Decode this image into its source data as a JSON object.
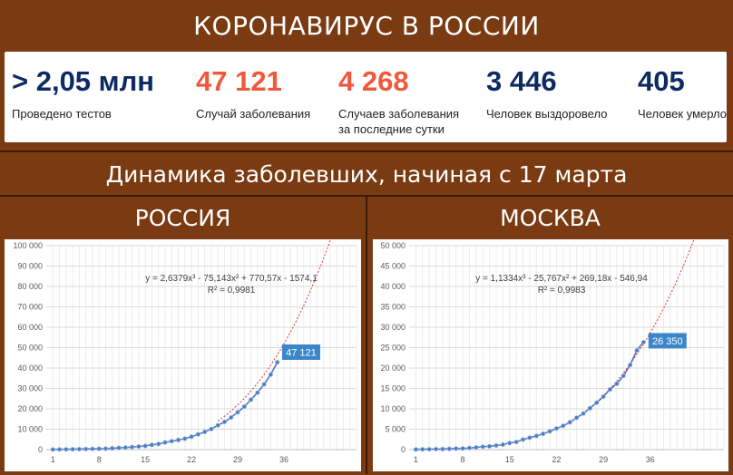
{
  "header": {
    "title": "КОРОНАВИРУС В РОССИИ"
  },
  "stats": [
    {
      "value": "> 2,05 млн",
      "label_lines": [
        "Проведено тестов"
      ],
      "color": "#0e2a63"
    },
    {
      "value": "47 121",
      "label_lines": [
        "Случай заболевания"
      ],
      "color": "#f0573b"
    },
    {
      "value": "4 268",
      "label_lines": [
        "Случаев заболевания",
        "за последние сутки"
      ],
      "color": "#f0573b"
    },
    {
      "value": "3 446",
      "label_lines": [
        "Человек выздоровело"
      ],
      "color": "#0e2a63"
    },
    {
      "value": "405",
      "label_lines": [
        "Человек умерло"
      ],
      "color": "#0e2a63"
    }
  ],
  "section": {
    "title": "Динамика заболевших, начиная с 17 марта"
  },
  "regions": {
    "left": "РОССИЯ",
    "right": "МОСКВА"
  },
  "colors": {
    "background": "#7a3b12",
    "series": "#4a78c2",
    "trend": "#e03030",
    "callout": "#3b86c8"
  },
  "chart_data": [
    {
      "type": "line",
      "title": "",
      "xlabel": "",
      "ylabel": "",
      "xlim": [
        0,
        47
      ],
      "ylim": [
        0,
        100000
      ],
      "x_ticks": [
        1,
        8,
        15,
        22,
        29,
        36
      ],
      "y_ticks": [
        0,
        10000,
        20000,
        30000,
        40000,
        50000,
        60000,
        70000,
        80000,
        90000,
        100000
      ],
      "y_tick_labels": [
        "0",
        "10 000",
        "20 000",
        "30 000",
        "40 000",
        "50 000",
        "60 000",
        "70 000",
        "80 000",
        "90 000",
        "100 000"
      ],
      "grid": true,
      "series": [
        {
          "x": [
            1,
            2,
            3,
            4,
            5,
            6,
            7,
            8,
            9,
            10,
            11,
            12,
            13,
            14,
            15,
            16,
            17,
            18,
            19,
            20,
            21,
            22,
            23,
            24,
            25,
            26,
            27,
            28,
            29,
            30,
            31,
            32,
            33,
            34,
            35
          ],
          "values": [
            93,
            114,
            147,
            199,
            253,
            306,
            367,
            438,
            495,
            658,
            840,
            1036,
            1264,
            1534,
            1836,
            2337,
            2777,
            3548,
            4149,
            4731,
            5389,
            6343,
            7497,
            8672,
            10131,
            11917,
            13584,
            15770,
            18328,
            21102,
            24490,
            27938,
            32008,
            36793,
            42853
          ]
        }
      ],
      "trendline": {
        "equation": "y = 2,6379x³ - 75,143x² + 770,57x - 1574,1",
        "r2": "R² = 0,9981",
        "coefficients": [
          2.6379,
          -75.143,
          770.57,
          -1574.1
        ],
        "x_range": [
          26,
          47
        ]
      },
      "callout": {
        "x": 36,
        "value": 47121,
        "text": "47 121"
      }
    },
    {
      "type": "line",
      "title": "",
      "xlabel": "",
      "ylabel": "",
      "xlim": [
        0,
        47
      ],
      "ylim": [
        0,
        50000
      ],
      "x_ticks": [
        1,
        8,
        15,
        22,
        29,
        36
      ],
      "y_ticks": [
        0,
        5000,
        10000,
        15000,
        20000,
        25000,
        30000,
        35000,
        40000,
        45000,
        50000
      ],
      "y_tick_labels": [
        "0",
        "5 000",
        "10 000",
        "15 000",
        "20 000",
        "25 000",
        "30 000",
        "35 000",
        "40 000",
        "45 000",
        "50 000"
      ],
      "grid": true,
      "series": [
        {
          "x": [
            1,
            2,
            3,
            4,
            5,
            6,
            7,
            8,
            9,
            10,
            11,
            12,
            13,
            14,
            15,
            16,
            17,
            18,
            19,
            20,
            21,
            22,
            23,
            24,
            25,
            26,
            27,
            28,
            29,
            30,
            31,
            32,
            33,
            34,
            35
          ],
          "values": [
            53,
            86,
            98,
            131,
            137,
            191,
            262,
            290,
            410,
            546,
            703,
            817,
            1014,
            1226,
            1613,
            1880,
            2475,
            2923,
            3357,
            3893,
            4484,
            5181,
            5841,
            6698,
            7822,
            8852,
            10158,
            11513,
            13002,
            14776,
            16146,
            18105,
            20754,
            24324,
            26350
          ]
        }
      ],
      "trendline": {
        "equation": "y = 1,1334x³ - 25,767x² + 269,18x - 546,94",
        "r2": "R² = 0,9983",
        "coefficients": [
          1.1334,
          -25.767,
          269.18,
          -546.94
        ],
        "x_range": [
          28,
          47
        ]
      },
      "callout": {
        "x": 36,
        "value": 26350,
        "text": "26 350"
      }
    }
  ]
}
